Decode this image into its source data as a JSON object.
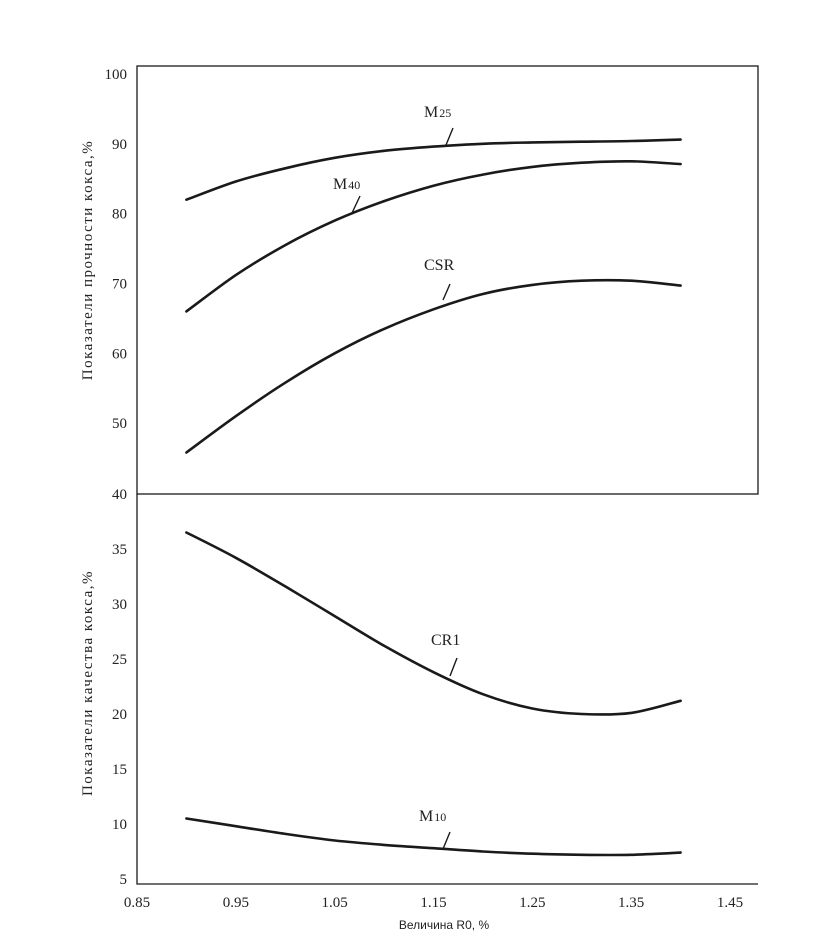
{
  "chart_data": [
    {
      "type": "line",
      "ylabel": "Показатели прочности кокса,%",
      "ylim": [
        40,
        100
      ],
      "yticks": [
        100,
        90,
        80,
        70,
        60,
        50
      ],
      "series": [
        {
          "name": "M25",
          "x": [
            0.9,
            0.95,
            1.0,
            1.05,
            1.1,
            1.15,
            1.2,
            1.25,
            1.3,
            1.35,
            1.4
          ],
          "y": [
            82,
            84.6,
            86.5,
            88.0,
            89.0,
            89.6,
            90.0,
            90.2,
            90.3,
            90.4,
            90.6
          ]
        },
        {
          "name": "M40",
          "x": [
            0.9,
            0.95,
            1.0,
            1.05,
            1.1,
            1.15,
            1.2,
            1.25,
            1.3,
            1.35,
            1.4
          ],
          "y": [
            66,
            71.2,
            75.5,
            79.0,
            81.8,
            84.0,
            85.6,
            86.7,
            87.3,
            87.5,
            87.1
          ]
        },
        {
          "name": "CSR",
          "x": [
            0.9,
            0.95,
            1.0,
            1.05,
            1.1,
            1.15,
            1.2,
            1.25,
            1.3,
            1.35,
            1.4
          ],
          "y": [
            45.8,
            51.0,
            55.8,
            60.0,
            63.5,
            66.3,
            68.5,
            69.8,
            70.4,
            70.4,
            69.7
          ]
        }
      ]
    },
    {
      "type": "line",
      "xlabel": "Величина R0, %",
      "ylabel": "Показатели качества кокса,%",
      "ylim": [
        5,
        40
      ],
      "xlim": [
        0.85,
        1.45
      ],
      "yticks": [
        40,
        35,
        30,
        25,
        20,
        15,
        10,
        5
      ],
      "xticks": [
        "0.85",
        "0.95",
        "1.05",
        "1.15",
        "1.25",
        "1.35",
        "1.45"
      ],
      "series": [
        {
          "name": "CR1",
          "x": [
            0.9,
            0.95,
            1.0,
            1.05,
            1.1,
            1.15,
            1.2,
            1.25,
            1.3,
            1.35,
            1.4
          ],
          "y": [
            36.5,
            34.2,
            31.6,
            28.9,
            26.2,
            23.8,
            21.8,
            20.5,
            20.0,
            20.1,
            21.2
          ]
        },
        {
          "name": "M10",
          "x": [
            0.9,
            0.95,
            1.0,
            1.05,
            1.1,
            1.15,
            1.2,
            1.25,
            1.3,
            1.35,
            1.4
          ],
          "y": [
            10.5,
            9.8,
            9.1,
            8.5,
            8.1,
            7.8,
            7.5,
            7.3,
            7.2,
            7.2,
            7.4
          ]
        }
      ]
    }
  ],
  "labels": {
    "m25_main": "M",
    "m25_sub": "25",
    "m40_main": "M",
    "m40_sub": "40",
    "csr": "CSR",
    "cr1": "CR1",
    "m10_main": "M",
    "m10_sub": "10"
  }
}
